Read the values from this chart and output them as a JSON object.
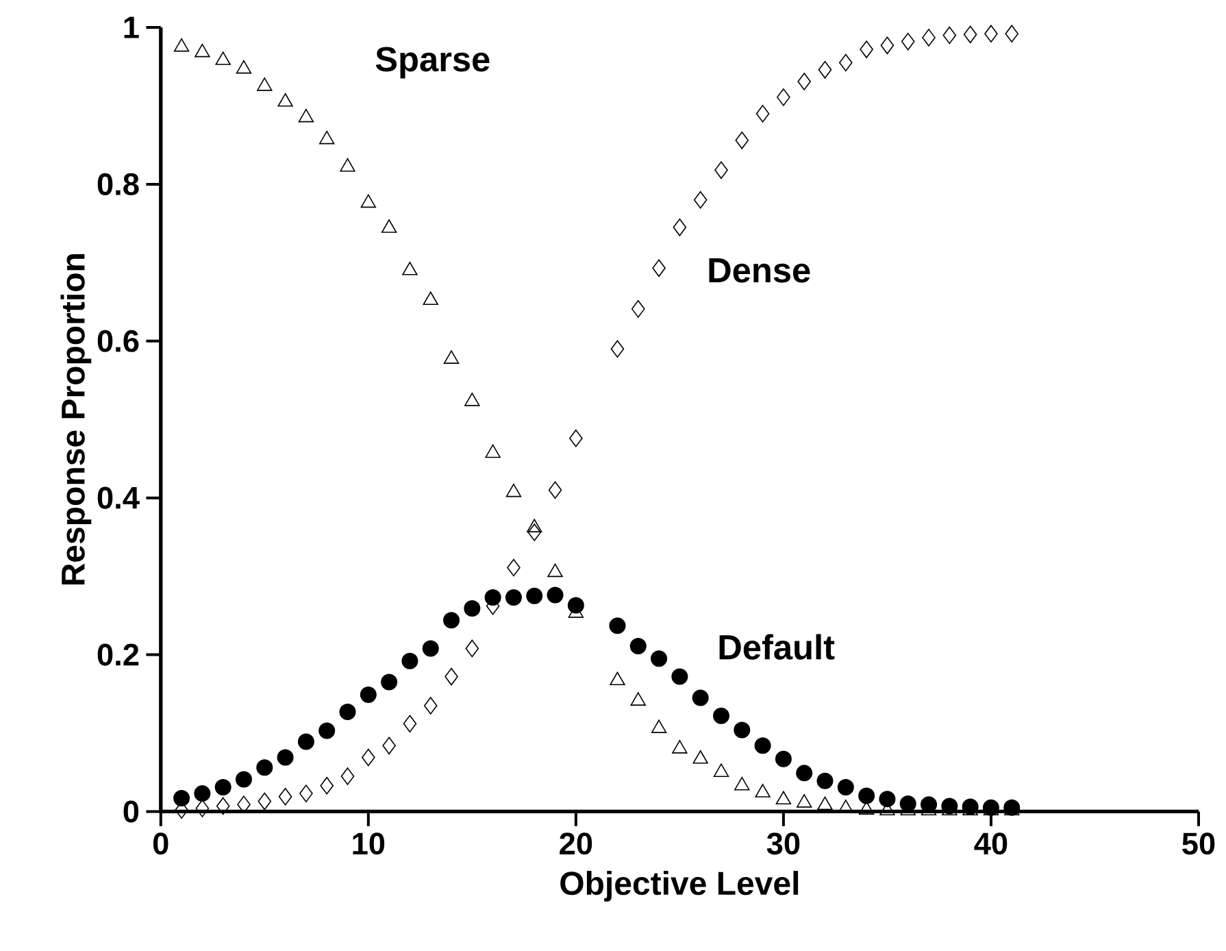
{
  "chart_data": {
    "type": "scatter",
    "xlabel": "Objective Level",
    "ylabel": "Response Proportion",
    "x": [
      1,
      2,
      3,
      4,
      5,
      6,
      7,
      8,
      9,
      10,
      11,
      12,
      13,
      14,
      15,
      16,
      17,
      18,
      19,
      20,
      22,
      23,
      24,
      25,
      26,
      27,
      28,
      29,
      30,
      31,
      32,
      33,
      34,
      35,
      36,
      37,
      38,
      39,
      40,
      41
    ],
    "xlim": [
      0,
      50
    ],
    "ylim": [
      0,
      1
    ],
    "xticks": [
      0,
      10,
      20,
      30,
      40,
      50
    ],
    "yticks": [
      0,
      0.2,
      0.4,
      0.6,
      0.8,
      1
    ],
    "grid": false,
    "legend": false,
    "series": [
      {
        "name": "Sparse",
        "color": "#000000",
        "marker": "triangle",
        "values": [
          0.975,
          0.968,
          0.958,
          0.947,
          0.925,
          0.905,
          0.885,
          0.857,
          0.822,
          0.776,
          0.744,
          0.69,
          0.652,
          0.577,
          0.523,
          0.457,
          0.407,
          0.362,
          0.305,
          0.253,
          0.167,
          0.141,
          0.106,
          0.08,
          0.067,
          0.05,
          0.033,
          0.024,
          0.015,
          0.011,
          0.008,
          0.004,
          0.002,
          0.001,
          0.001,
          0.001,
          0.001,
          0.001,
          0.001,
          0.001
        ]
      },
      {
        "name": "Dense",
        "color": "#000000",
        "marker": "diamond",
        "values": [
          0.002,
          0.004,
          0.007,
          0.009,
          0.013,
          0.019,
          0.023,
          0.033,
          0.045,
          0.069,
          0.084,
          0.112,
          0.135,
          0.172,
          0.208,
          0.262,
          0.311,
          0.356,
          0.41,
          0.476,
          0.59,
          0.641,
          0.693,
          0.745,
          0.78,
          0.818,
          0.856,
          0.89,
          0.911,
          0.931,
          0.946,
          0.955,
          0.972,
          0.977,
          0.982,
          0.987,
          0.99,
          0.991,
          0.992,
          0.992
        ]
      },
      {
        "name": "Default",
        "color": "#000000",
        "marker": "circle",
        "values": [
          0.017,
          0.023,
          0.031,
          0.041,
          0.056,
          0.069,
          0.089,
          0.103,
          0.127,
          0.149,
          0.165,
          0.192,
          0.208,
          0.244,
          0.259,
          0.273,
          0.273,
          0.275,
          0.276,
          0.263,
          0.237,
          0.211,
          0.195,
          0.172,
          0.145,
          0.122,
          0.104,
          0.084,
          0.067,
          0.049,
          0.039,
          0.031,
          0.02,
          0.016,
          0.01,
          0.009,
          0.007,
          0.006,
          0.005,
          0.005
        ]
      }
    ]
  }
}
